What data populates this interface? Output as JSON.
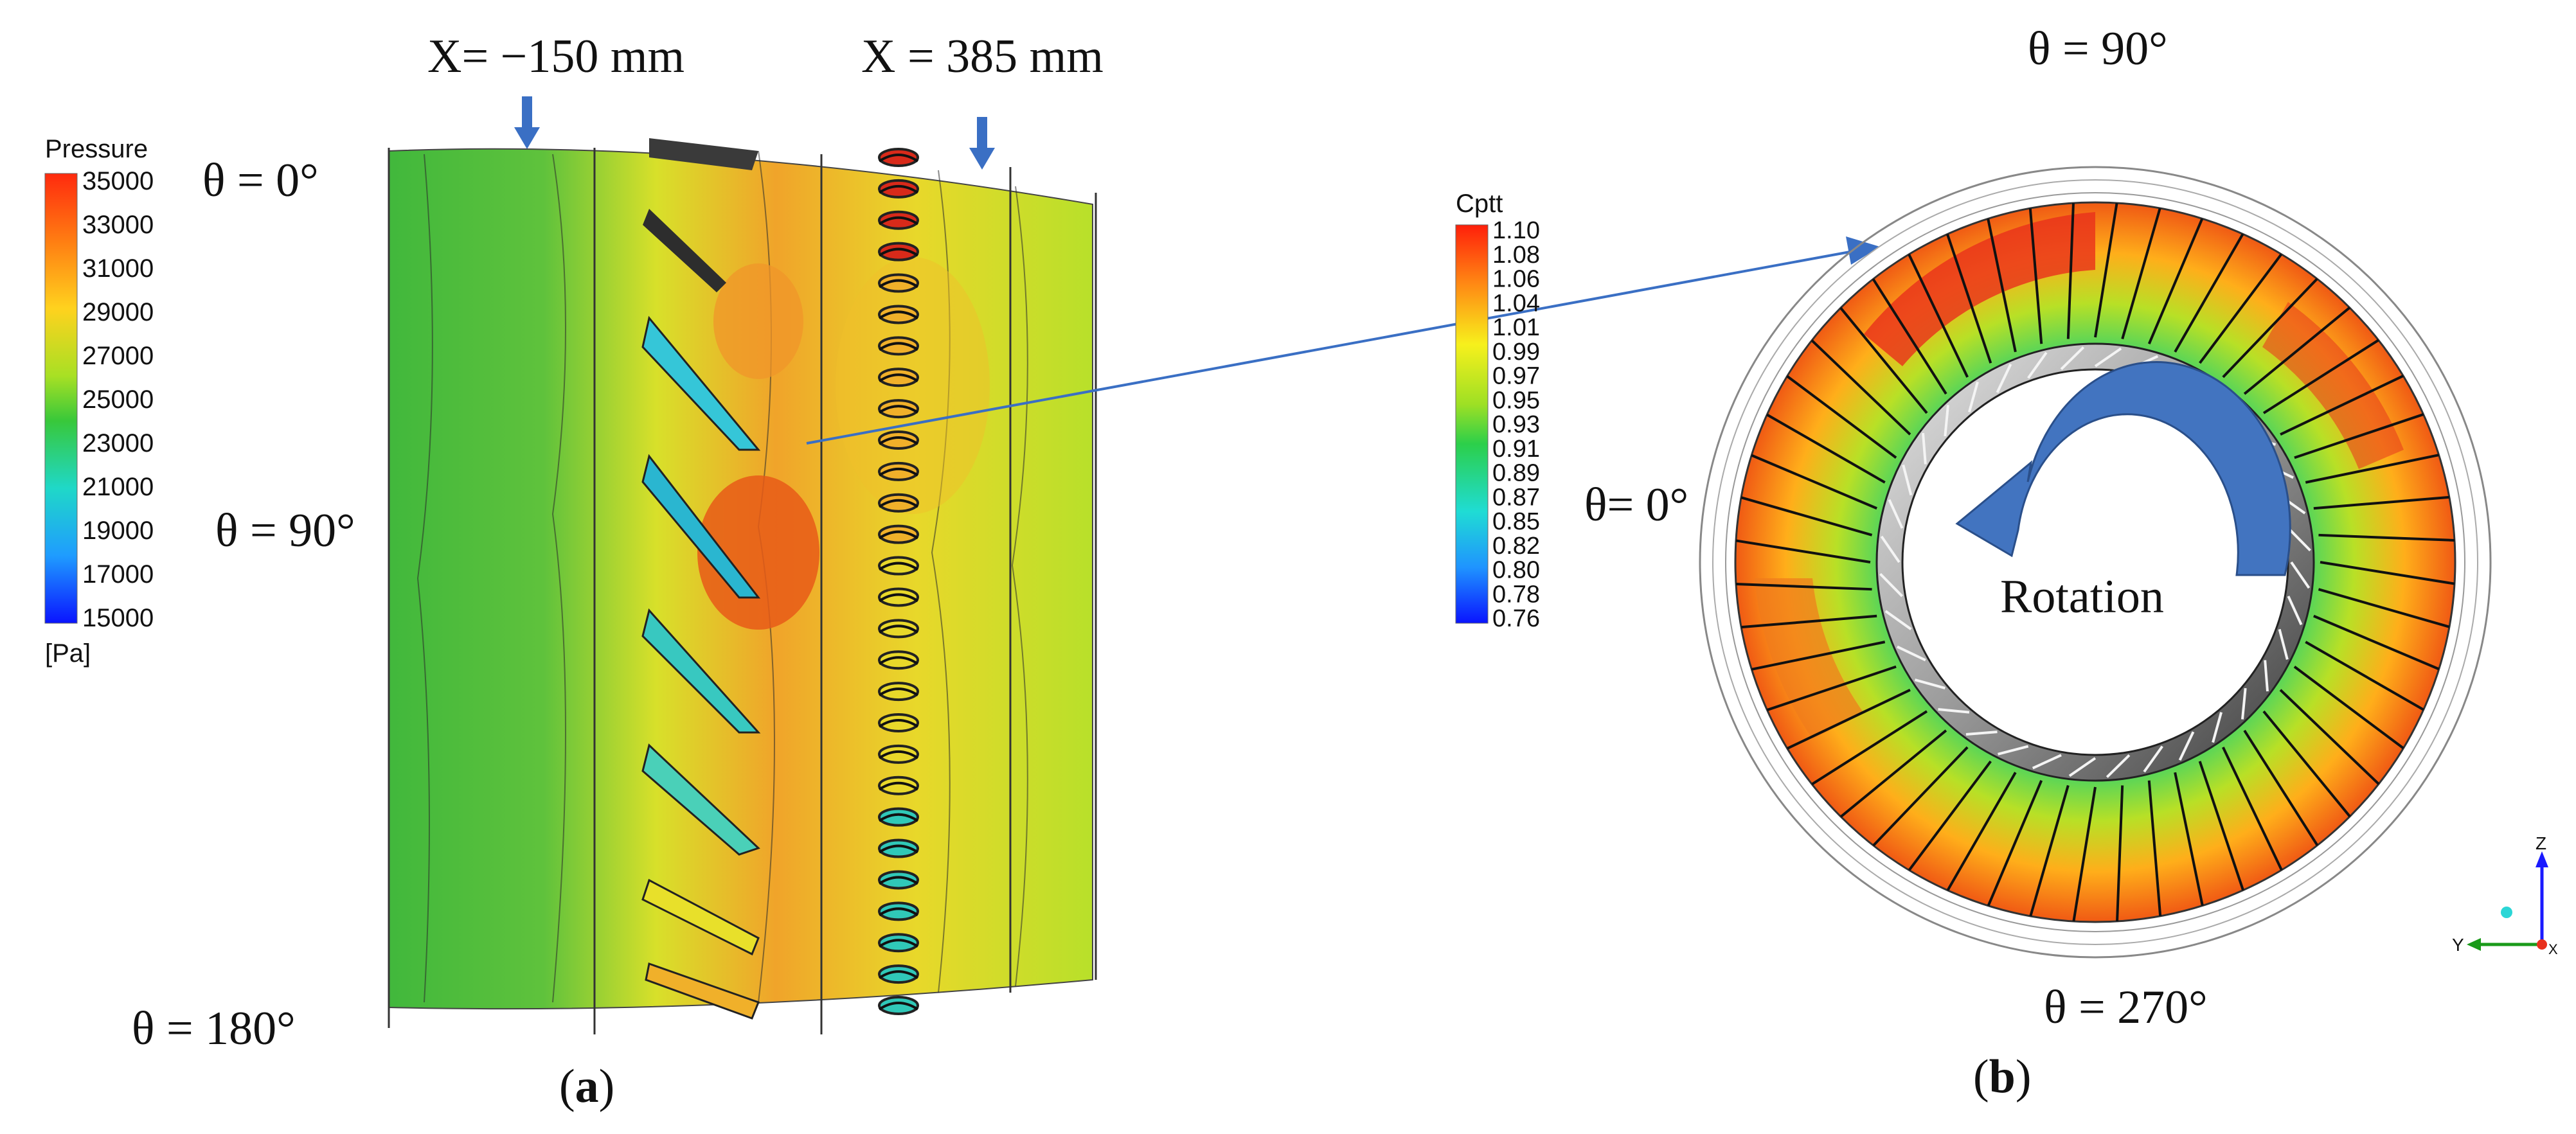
{
  "panel_a": {
    "section_left_label": "X=  −150  mm",
    "section_right_label": "X  =  385  mm",
    "theta_top": "θ = 0°",
    "theta_mid": "θ = 90°",
    "theta_bottom": "θ = 180°",
    "caption_letter": "a",
    "legend": {
      "title": "Pressure",
      "unit": "[Pa]",
      "ticks": [
        "35000",
        "33000",
        "31000",
        "29000",
        "27000",
        "25000",
        "23000",
        "21000",
        "19000",
        "17000",
        "15000"
      ]
    }
  },
  "panel_b": {
    "theta_top": "θ = 90°",
    "theta_left": "θ= 0°",
    "theta_bottom": "θ = 270°",
    "rotation_label": "Rotation",
    "caption_letter": "b",
    "legend": {
      "title": "Cptt",
      "ticks": [
        "1.10",
        "1.08",
        "1.06",
        "1.04",
        "1.01",
        "0.99",
        "0.97",
        "0.95",
        "0.93",
        "0.91",
        "0.89",
        "0.87",
        "0.85",
        "0.82",
        "0.80",
        "0.78",
        "0.76"
      ]
    },
    "triad": {
      "z": "Z",
      "y": "Y",
      "x": "X"
    }
  },
  "colors": {
    "red": "#e8301c",
    "orange": "#f7941d",
    "yellow": "#f5e61c",
    "green": "#52b847",
    "cyan": "#2bd6d6",
    "blue": "#1a1aff",
    "arrow_blue": "#3a6fc4"
  }
}
